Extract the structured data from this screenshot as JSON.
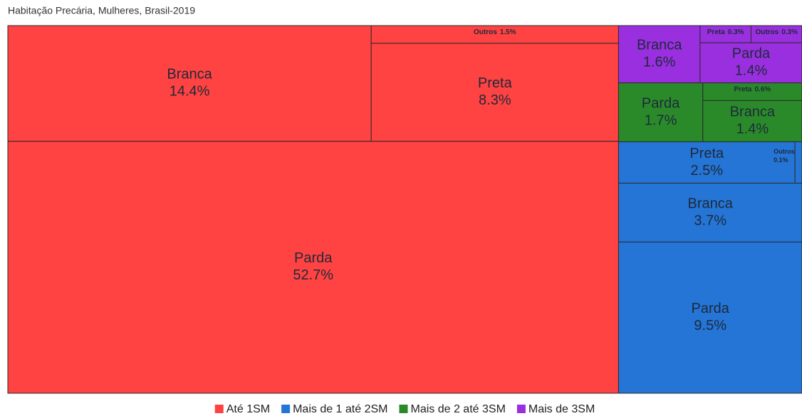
{
  "chart_data": {
    "type": "treemap",
    "title": "Habitação Precária, Mulheres, Brasil-2019",
    "series": [
      {
        "name": "Até 1SM",
        "color": "#ff4242",
        "categories": [
          "Parda",
          "Branca",
          "Preta",
          "Outros"
        ],
        "values": [
          52.7,
          14.4,
          8.3,
          1.5
        ],
        "value_labels": [
          "52.7%",
          "14.4%",
          "8.3%",
          "1.5%"
        ]
      },
      {
        "name": "Mais de 1 até 2SM",
        "color": "#2475d6",
        "categories": [
          "Parda",
          "Branca",
          "Preta",
          "Outros"
        ],
        "values": [
          9.5,
          3.7,
          2.5,
          0.1
        ],
        "value_labels": [
          "9.5%",
          "3.7%",
          "2.5%",
          "0.1%"
        ]
      },
      {
        "name": "Mais de 2 até 3SM",
        "color": "#2a8a2a",
        "categories": [
          "Parda",
          "Branca",
          "Preta"
        ],
        "values": [
          1.7,
          1.4,
          0.6
        ],
        "value_labels": [
          "1.7%",
          "1.4%",
          "0.6%"
        ]
      },
      {
        "name": "Mais de 3SM",
        "color": "#9a2fe0",
        "categories": [
          "Branca",
          "Parda",
          "Preta",
          "Outros"
        ],
        "values": [
          1.6,
          1.4,
          0.3,
          0.3
        ],
        "value_labels": [
          "1.6%",
          "1.4%",
          "0.3%",
          "0.3%"
        ]
      }
    ]
  }
}
